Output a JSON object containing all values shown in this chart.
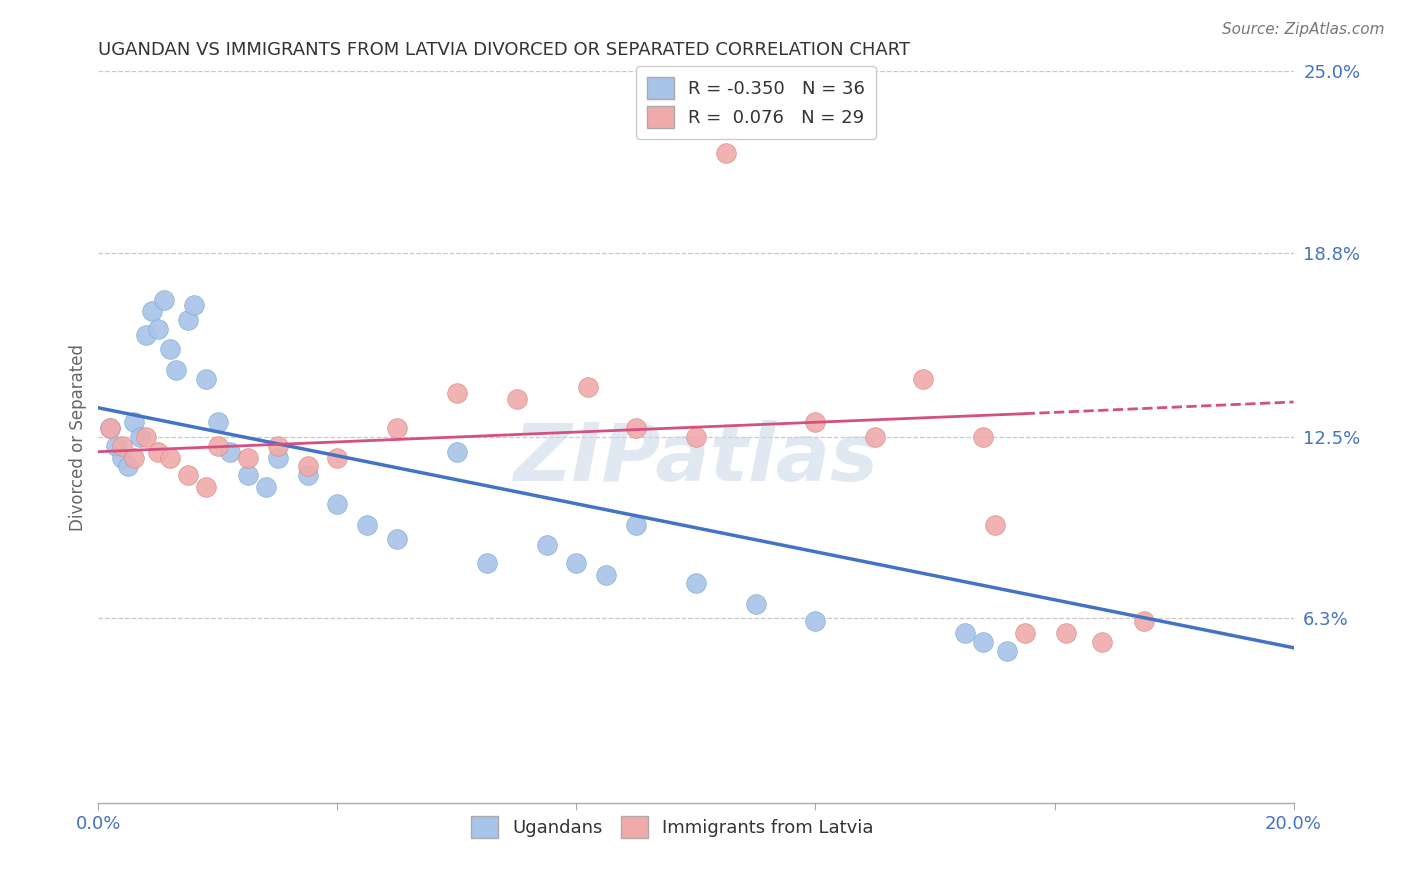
{
  "title": "UGANDAN VS IMMIGRANTS FROM LATVIA DIVORCED OR SEPARATED CORRELATION CHART",
  "source_text": "Source: ZipAtlas.com",
  "xlabel": "Immigrants from Latvia",
  "ylabel": "Divorced or Separated",
  "xlim": [
    0.0,
    0.2
  ],
  "ylim": [
    0.0,
    0.25
  ],
  "ytick_labels": [
    "6.3%",
    "12.5%",
    "18.8%",
    "25.0%"
  ],
  "ytick_vals": [
    0.063,
    0.125,
    0.188,
    0.25
  ],
  "grid_color": "#c8c8c8",
  "bg_color": "#ffffff",
  "watermark": "ZIPatlas",
  "ugandan_color": "#a8c4e8",
  "ugandan_edge": "#7aaad0",
  "latvia_color": "#f0aaaa",
  "latvia_edge": "#d88888",
  "blue_line_color": "#4472c4",
  "pink_line_color": "#d45080",
  "legend_label1": "R = -0.350   N = 36",
  "legend_label2": "R =  0.076   N = 29",
  "legend_bottom_label1": "Ugandans",
  "legend_bottom_label2": "Immigrants from Latvia",
  "ugandan_x": [
    0.002,
    0.003,
    0.004,
    0.005,
    0.006,
    0.007,
    0.008,
    0.009,
    0.01,
    0.011,
    0.012,
    0.013,
    0.015,
    0.016,
    0.018,
    0.02,
    0.022,
    0.025,
    0.028,
    0.03,
    0.035,
    0.04,
    0.045,
    0.05,
    0.06,
    0.065,
    0.075,
    0.08,
    0.085,
    0.09,
    0.1,
    0.11,
    0.12,
    0.145,
    0.148,
    0.152
  ],
  "ugandan_y": [
    0.128,
    0.122,
    0.118,
    0.115,
    0.13,
    0.125,
    0.16,
    0.168,
    0.162,
    0.172,
    0.155,
    0.148,
    0.165,
    0.17,
    0.145,
    0.13,
    0.12,
    0.112,
    0.108,
    0.118,
    0.112,
    0.102,
    0.095,
    0.09,
    0.12,
    0.082,
    0.088,
    0.082,
    0.078,
    0.095,
    0.075,
    0.068,
    0.062,
    0.058,
    0.055,
    0.052
  ],
  "latvia_x": [
    0.002,
    0.004,
    0.006,
    0.008,
    0.01,
    0.012,
    0.015,
    0.018,
    0.02,
    0.025,
    0.03,
    0.035,
    0.04,
    0.05,
    0.06,
    0.07,
    0.082,
    0.09,
    0.1,
    0.105,
    0.12,
    0.13,
    0.138,
    0.148,
    0.15,
    0.155,
    0.162,
    0.168,
    0.175
  ],
  "latvia_y": [
    0.128,
    0.122,
    0.118,
    0.125,
    0.12,
    0.118,
    0.112,
    0.108,
    0.122,
    0.118,
    0.122,
    0.115,
    0.118,
    0.128,
    0.14,
    0.138,
    0.142,
    0.128,
    0.125,
    0.222,
    0.13,
    0.125,
    0.145,
    0.125,
    0.095,
    0.058,
    0.058,
    0.055,
    0.062
  ],
  "blue_line_x_start": 0.0,
  "blue_line_x_end": 0.2,
  "blue_line_y_start": 0.135,
  "blue_line_y_end": 0.053,
  "pink_line_x_start": 0.0,
  "pink_line_x_solid_end": 0.155,
  "pink_line_x_dashed_end": 0.2,
  "pink_line_y_start": 0.12,
  "pink_line_y_solid_end": 0.133,
  "pink_line_y_dashed_end": 0.137
}
